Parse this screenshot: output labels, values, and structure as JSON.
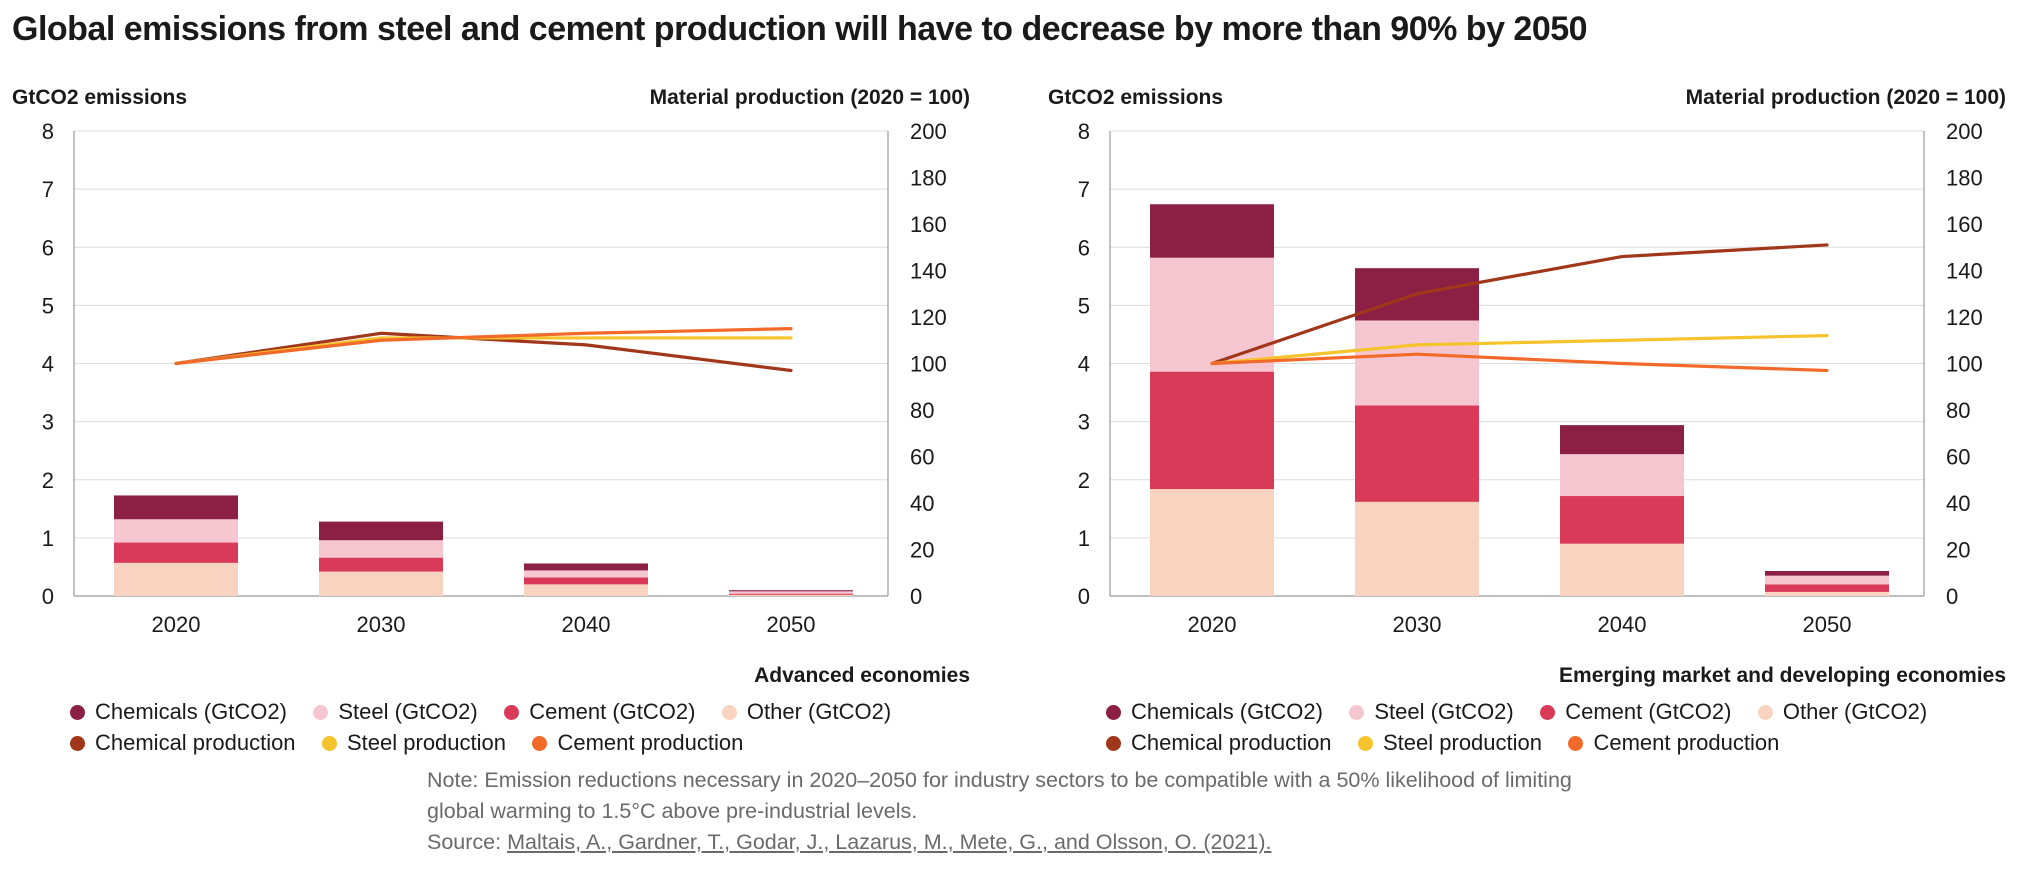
{
  "title": "Global emissions from steel and cement production will have to decrease by more than 90% by 2050",
  "colors": {
    "chemicals": "#8b2044",
    "steel": "#f6c6d0",
    "cement": "#d83a58",
    "other": "#f8d4c0",
    "chemical_production": "#a0361a",
    "steel_production": "#f5c32c",
    "cement_production": "#f26a2a",
    "grid": "#dcdcdc",
    "axis": "#9a9a9a"
  },
  "legend": {
    "chemicals": "Chemicals (GtCO2)",
    "steel": "Steel (GtCO2)",
    "cement": "Cement (GtCO2)",
    "other": "Other (GtCO2)",
    "chemical_production": "Chemical production",
    "steel_production": "Steel production",
    "cement_production": "Cement production"
  },
  "note": {
    "line1": "Note: Emission reductions necessary in 2020–2050 for industry sectors to be compatible with a 50% likelihood of limiting",
    "line2": "global warming to 1.5°C above pre-industrial levels.",
    "source_prefix": "Source: ",
    "source_link": "Maltais, A., Gardner, T., Godar, J., Lazarus, M., Mete, G., and Olsson, O. (2021)."
  },
  "chart_data": [
    {
      "type": "bar",
      "stacked": true,
      "subtitle": "Advanced economies",
      "ylabel_left": "GtCO2 emissions",
      "ylabel_right": "Material production (2020 = 100)",
      "ylim_left": [
        0,
        8
      ],
      "yticks_left": [
        0,
        1,
        2,
        3,
        4,
        5,
        6,
        7,
        8
      ],
      "ylim_right": [
        0,
        200
      ],
      "yticks_right": [
        0,
        20,
        40,
        60,
        80,
        100,
        120,
        140,
        160,
        180,
        200
      ],
      "categories": [
        "2020",
        "2030",
        "2040",
        "2050"
      ],
      "grid": true,
      "series": [
        {
          "name": "Other (GtCO2)",
          "key": "other",
          "values": [
            0.57,
            0.42,
            0.2,
            0.02
          ]
        },
        {
          "name": "Cement (GtCO2)",
          "key": "cement",
          "values": [
            0.35,
            0.24,
            0.12,
            0.02
          ]
        },
        {
          "name": "Steel (GtCO2)",
          "key": "steel",
          "values": [
            0.4,
            0.3,
            0.12,
            0.04
          ]
        },
        {
          "name": "Chemicals (GtCO2)",
          "key": "chemicals",
          "values": [
            0.41,
            0.32,
            0.12,
            0.02
          ]
        }
      ],
      "line_series": [
        {
          "name": "Chemical production",
          "key": "chemical_production",
          "axis": "right",
          "values": [
            100,
            113,
            108,
            97
          ]
        },
        {
          "name": "Steel production",
          "key": "steel_production",
          "axis": "right",
          "values": [
            100,
            111,
            111,
            111
          ]
        },
        {
          "name": "Cement production",
          "key": "cement_production",
          "axis": "right",
          "values": [
            100,
            110,
            113,
            115
          ]
        }
      ]
    },
    {
      "type": "bar",
      "stacked": true,
      "subtitle": "Emerging market and developing economies",
      "ylabel_left": "GtCO2 emissions",
      "ylabel_right": "Material production (2020 = 100)",
      "ylim_left": [
        0,
        8
      ],
      "yticks_left": [
        0,
        1,
        2,
        3,
        4,
        5,
        6,
        7,
        8
      ],
      "ylim_right": [
        0,
        200
      ],
      "yticks_right": [
        0,
        20,
        40,
        60,
        80,
        100,
        120,
        140,
        160,
        180,
        200
      ],
      "categories": [
        "2020",
        "2030",
        "2040",
        "2050"
      ],
      "grid": true,
      "series": [
        {
          "name": "Other (GtCO2)",
          "key": "other",
          "values": [
            1.84,
            1.62,
            0.9,
            0.07
          ]
        },
        {
          "name": "Cement (GtCO2)",
          "key": "cement",
          "values": [
            2.02,
            1.66,
            0.82,
            0.13
          ]
        },
        {
          "name": "Steel (GtCO2)",
          "key": "steel",
          "values": [
            1.96,
            1.46,
            0.72,
            0.15
          ]
        },
        {
          "name": "Chemicals (GtCO2)",
          "key": "chemicals",
          "values": [
            0.92,
            0.9,
            0.5,
            0.08
          ]
        }
      ],
      "line_series": [
        {
          "name": "Chemical production",
          "key": "chemical_production",
          "axis": "right",
          "values": [
            100,
            130,
            146,
            151
          ]
        },
        {
          "name": "Steel production",
          "key": "steel_production",
          "axis": "right",
          "values": [
            100,
            108,
            110,
            112
          ]
        },
        {
          "name": "Cement production",
          "key": "cement_production",
          "axis": "right",
          "values": [
            100,
            104,
            100,
            97
          ]
        }
      ]
    }
  ]
}
